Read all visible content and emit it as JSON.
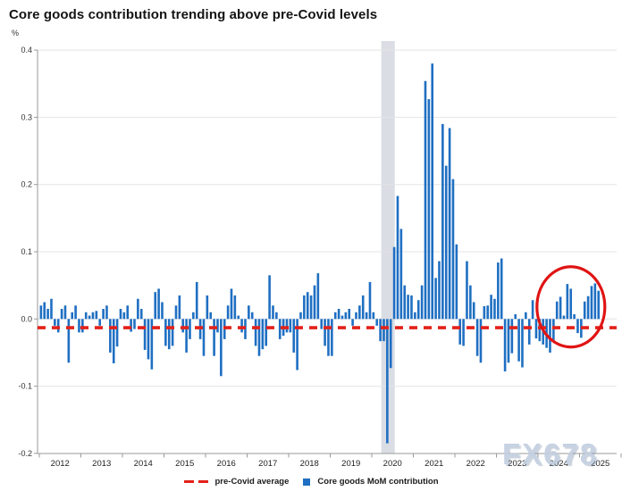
{
  "title": "Core goods contribution trending above pre-Covid levels",
  "y_axis_unit": "%",
  "watermark": "FX678",
  "legend": {
    "pre_covid_label": "pre-Covid average",
    "series_label": "Core goods MoM contribution"
  },
  "colors": {
    "bar": "#1f6fc2",
    "pre_covid_line": "#e32119",
    "annotation_circle": "#e01414",
    "recession_band": "#dadde4",
    "grid": "#e4e4e4",
    "axis": "#9a9a9a",
    "tick_text": "#333333",
    "watermark": "#c3cfe0"
  },
  "chart_data": {
    "type": "bar",
    "title": "Core goods contribution trending above pre-Covid levels",
    "unit": "%",
    "frequency": "monthly",
    "start_month": "2012-01",
    "end_month": "2025-06",
    "x_year_labels": [
      "2012",
      "2013",
      "2014",
      "2015",
      "2016",
      "2017",
      "2018",
      "2019",
      "2020",
      "2021",
      "2022",
      "2023",
      "2024",
      "2025"
    ],
    "y_tick_labels": [
      "0.4",
      "0.3",
      "0.2",
      "0.1",
      "0.0",
      "-0.1",
      "-0.2"
    ],
    "y_ticks": [
      0.4,
      0.3,
      0.2,
      0.1,
      0.0,
      -0.1,
      -0.2
    ],
    "ylim": [
      -0.2,
      0.4
    ],
    "grid": true,
    "legend_position": "bottom",
    "pre_covid_average": -0.013,
    "series": [
      {
        "name": "Core goods MoM contribution",
        "values": [
          0.02,
          0.025,
          0.015,
          0.03,
          -0.01,
          -0.02,
          0.015,
          0.02,
          -0.065,
          0.01,
          0.02,
          -0.02,
          -0.02,
          0.01,
          0.005,
          0.01,
          0.012,
          -0.01,
          0.015,
          0.02,
          -0.05,
          -0.066,
          -0.041,
          0.015,
          0.01,
          0.02,
          -0.019,
          -0.015,
          0.03,
          0.015,
          -0.046,
          -0.06,
          -0.075,
          0.04,
          0.045,
          0.025,
          -0.04,
          -0.045,
          -0.04,
          0.02,
          0.035,
          -0.02,
          -0.05,
          -0.03,
          0.01,
          0.055,
          -0.03,
          -0.055,
          0.035,
          0.01,
          -0.055,
          -0.02,
          -0.085,
          -0.03,
          0.02,
          0.045,
          0.035,
          0.005,
          -0.02,
          -0.03,
          0.02,
          0.01,
          -0.04,
          -0.055,
          -0.045,
          -0.04,
          0.065,
          0.02,
          0.01,
          -0.03,
          -0.025,
          -0.02,
          -0.02,
          -0.05,
          -0.076,
          0.01,
          0.035,
          0.04,
          0.035,
          0.05,
          0.068,
          -0.015,
          -0.04,
          -0.055,
          -0.055,
          0.01,
          0.015,
          0.005,
          0.01,
          0.015,
          -0.01,
          0.01,
          0.02,
          0.035,
          0.01,
          0.055,
          0.01,
          -0.01,
          -0.033,
          -0.033,
          -0.185,
          -0.073,
          0.107,
          0.183,
          0.134,
          0.05,
          0.036,
          0.035,
          0.01,
          0.028,
          0.05,
          0.354,
          0.327,
          0.38,
          0.061,
          0.086,
          0.29,
          0.228,
          0.284,
          0.208,
          0.111,
          -0.038,
          -0.04,
          0.086,
          0.05,
          0.025,
          -0.055,
          -0.065,
          0.019,
          0.02,
          0.036,
          0.03,
          0.084,
          0.09,
          -0.078,
          -0.065,
          -0.051,
          0.007,
          -0.063,
          -0.072,
          0.01,
          -0.038,
          0.028,
          -0.029,
          -0.033,
          -0.038,
          -0.043,
          -0.05,
          -0.032,
          0.026,
          0.033,
          0.005,
          0.052,
          0.045,
          0.007,
          -0.021,
          -0.028,
          0.026,
          0.034,
          0.049,
          0.053,
          0.042
        ]
      }
    ],
    "recession_band": {
      "start_month": "2020-04",
      "end_month": "2020-06",
      "start_index": 99,
      "end_index": 102
    },
    "annotation_circle": {
      "around_months": "2024-07 to 2025-06",
      "center_month_index": 153,
      "center_value": 0.018
    }
  }
}
